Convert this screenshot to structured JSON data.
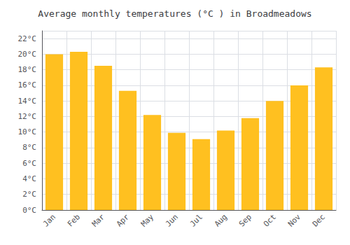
{
  "chart_data": {
    "type": "bar",
    "title": "Average monthly temperatures (°C ) in Broadmeadows",
    "categories": [
      "Jan",
      "Feb",
      "Mar",
      "Apr",
      "May",
      "Jun",
      "Jul",
      "Aug",
      "Sep",
      "Oct",
      "Nov",
      "Dec"
    ],
    "values": [
      20.0,
      20.3,
      18.5,
      15.3,
      12.2,
      9.9,
      9.1,
      10.2,
      11.8,
      14.0,
      16.0,
      18.3
    ],
    "color": "#FFC020",
    "ylim": [
      0,
      23
    ],
    "yticks": [
      {
        "value": 0,
        "label": "0°C"
      },
      {
        "value": 2,
        "label": "2°C"
      },
      {
        "value": 4,
        "label": "4°C"
      },
      {
        "value": 6,
        "label": "6°C"
      },
      {
        "value": 8,
        "label": "8°C"
      },
      {
        "value": 10,
        "label": "10°C"
      },
      {
        "value": 12,
        "label": "12°C"
      },
      {
        "value": 14,
        "label": "14°C"
      },
      {
        "value": 16,
        "label": "16°C"
      },
      {
        "value": 18,
        "label": "18°C"
      },
      {
        "value": 20,
        "label": "20°C"
      },
      {
        "value": 22,
        "label": "22°C"
      }
    ],
    "grid": true
  }
}
